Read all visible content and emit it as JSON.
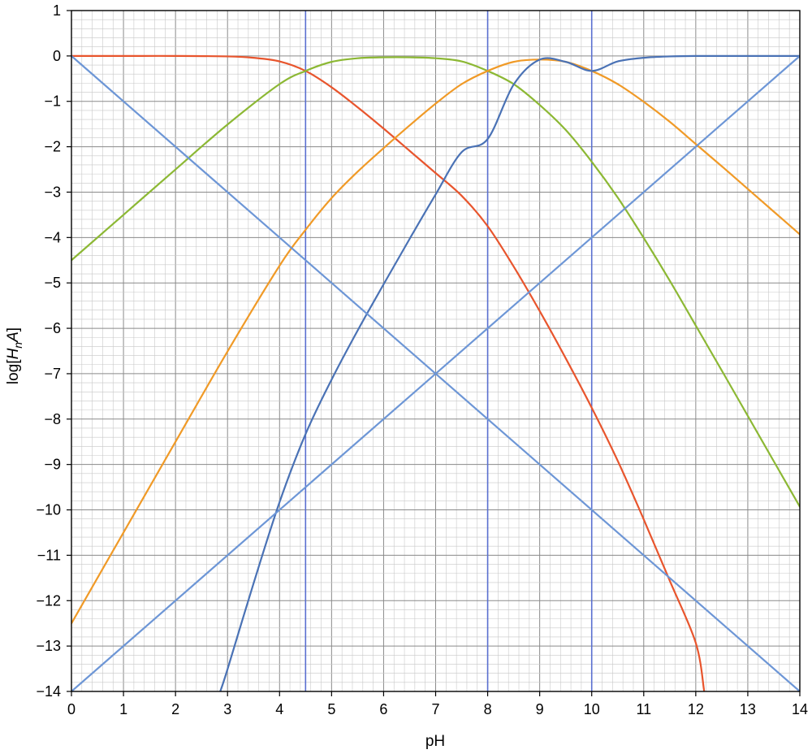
{
  "chart_data": {
    "type": "line",
    "title": "",
    "xlabel": "pH",
    "ylabel": {
      "prefix": "log[",
      "H": "H",
      "sub": "n",
      "A": "A",
      "suffix": "]"
    },
    "xlim": [
      0,
      14
    ],
    "ylim": [
      -14,
      1
    ],
    "x_ticks": [
      "0",
      "1",
      "2",
      "3",
      "4",
      "5",
      "6",
      "7",
      "8",
      "9",
      "10",
      "11",
      "12",
      "13",
      "14"
    ],
    "y_ticks": [
      "1",
      "0",
      "−1",
      "−2",
      "−3",
      "−4",
      "−5",
      "−6",
      "−7",
      "−8",
      "−9",
      "−10",
      "−11",
      "−12",
      "−13",
      "−14"
    ],
    "grid": true,
    "minor_grid_step": 0.2,
    "pKa_lines": [
      4.5,
      8,
      10
    ],
    "series": [
      {
        "id": "H3A",
        "color": "#e8552d",
        "x": [
          0,
          1,
          2,
          3,
          3.5,
          4,
          4.5,
          5,
          5.5,
          6,
          6.5,
          7,
          7.5,
          8,
          8.5,
          9,
          9.5,
          10,
          10.5,
          11,
          11.5,
          12,
          12.16
        ],
        "y": [
          0,
          0,
          0,
          -0.01,
          -0.04,
          -0.12,
          -0.33,
          -0.69,
          -1.13,
          -1.6,
          -2.09,
          -2.58,
          -3.08,
          -3.75,
          -4.64,
          -5.62,
          -6.66,
          -7.75,
          -8.92,
          -10.21,
          -11.56,
          -12.93,
          -13.98
        ]
      },
      {
        "id": "H2A",
        "color": "#8cb834",
        "x": [
          0,
          1,
          2,
          3,
          4,
          4.5,
          5,
          5.5,
          6,
          6.5,
          7,
          7.5,
          8,
          8.5,
          9,
          9.5,
          10,
          10.5,
          11,
          11.5,
          12,
          12.5,
          13,
          13.5,
          14
        ],
        "y": [
          -4.5,
          -3.5,
          -2.5,
          -1.51,
          -0.62,
          -0.33,
          -0.13,
          -0.05,
          -0.03,
          -0.03,
          -0.05,
          -0.12,
          -0.33,
          -0.62,
          -1.08,
          -1.63,
          -2.33,
          -3.12,
          -4.01,
          -4.95,
          -5.94,
          -6.93,
          -7.93,
          -8.93,
          -9.93
        ]
      },
      {
        "id": "HA",
        "color": "#f09a27",
        "x": [
          0,
          1,
          2,
          3,
          4,
          4.5,
          5,
          5.5,
          6,
          6.5,
          7,
          7.5,
          8,
          8.5,
          9,
          9.5,
          10,
          10.5,
          11,
          11.5,
          12,
          12.5,
          13,
          13.5,
          14
        ],
        "y": [
          -12.5,
          -10.5,
          -8.5,
          -6.51,
          -4.62,
          -3.83,
          -3.13,
          -2.55,
          -2.03,
          -1.53,
          -1.05,
          -0.62,
          -0.33,
          -0.13,
          -0.08,
          -0.13,
          -0.33,
          -0.62,
          -1.01,
          -1.45,
          -1.94,
          -2.43,
          -2.93,
          -3.43,
          -3.93
        ]
      },
      {
        "id": "A",
        "color": "#4a72b5",
        "x": [
          2.86,
          3,
          3.5,
          4,
          4.5,
          5,
          5.5,
          6,
          6.5,
          7,
          7.5,
          8,
          8.5,
          9,
          9.5,
          10,
          10.5,
          11,
          11.5,
          12,
          13,
          14
        ],
        "y": [
          -14,
          -13.51,
          -11.62,
          -9.83,
          -8.33,
          -7.13,
          -6.05,
          -5.03,
          -4.03,
          -3.05,
          -2.12,
          -1.83,
          -0.63,
          -0.08,
          -0.13,
          -0.33,
          -0.12,
          -0.04,
          -0.01,
          0,
          0,
          0
        ]
      },
      {
        "id": "H",
        "color": "#6d96d6",
        "x": [
          0,
          14
        ],
        "y": [
          0,
          -14
        ]
      },
      {
        "id": "OH",
        "color": "#6d96d6",
        "x": [
          0,
          14
        ],
        "y": [
          -14,
          0
        ]
      }
    ]
  }
}
